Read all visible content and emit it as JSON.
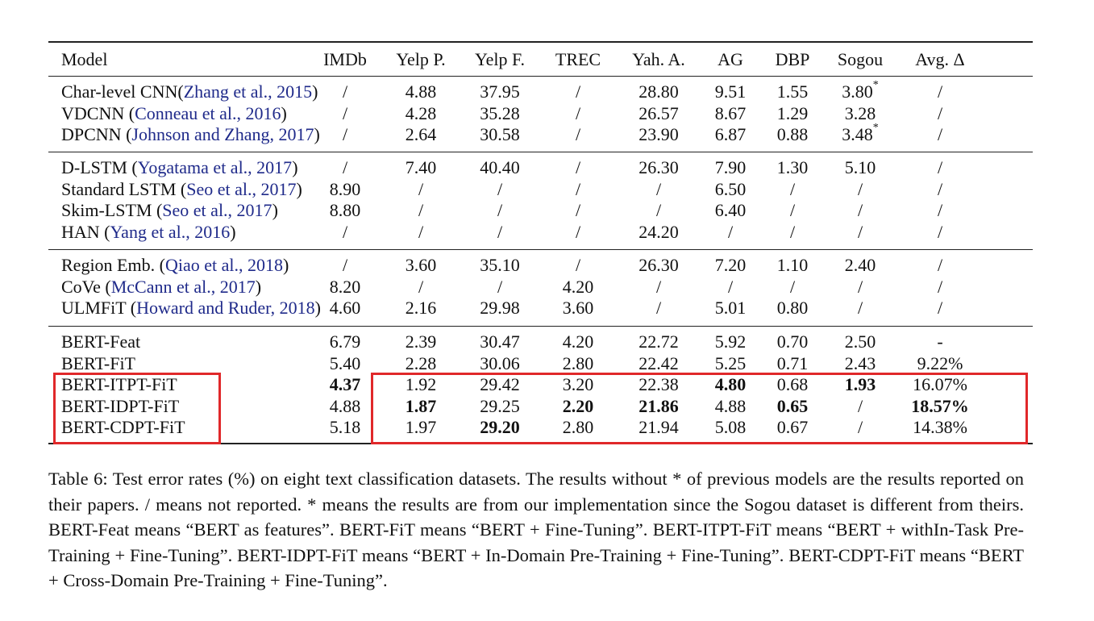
{
  "table": {
    "headers": [
      "Model",
      "IMDb",
      "Yelp P.",
      "Yelp F.",
      "TREC",
      "Yah. A.",
      "AG",
      "DBP",
      "Sogou",
      "Avg. Δ"
    ],
    "groups": [
      [
        {
          "name": "Char-level CNN(",
          "cite": "Zhang et al., 2015",
          "suffix": ")",
          "cells": [
            "/",
            "4.88",
            "37.95",
            "/",
            "28.80",
            "9.51",
            "1.55",
            "3.80*",
            "/"
          ]
        },
        {
          "name": "VDCNN (",
          "cite": "Conneau et al., 2016",
          "suffix": ")",
          "cells": [
            "/",
            "4.28",
            "35.28",
            "/",
            "26.57",
            "8.67",
            "1.29",
            "3.28",
            "/"
          ]
        },
        {
          "name": "DPCNN (",
          "cite": "Johnson and Zhang, 2017",
          "suffix": ")",
          "cells": [
            "/",
            "2.64",
            "30.58",
            "/",
            "23.90",
            "6.87",
            "0.88",
            "3.48*",
            "/"
          ]
        }
      ],
      [
        {
          "name": "D-LSTM (",
          "cite": "Yogatama et al., 2017",
          "suffix": ")",
          "cells": [
            "/",
            "7.40",
            "40.40",
            "/",
            "26.30",
            "7.90",
            "1.30",
            "5.10",
            "/"
          ]
        },
        {
          "name": "Standard LSTM (",
          "cite": "Seo et al., 2017",
          "suffix": ")",
          "cells": [
            "8.90",
            "/",
            "/",
            "/",
            "/",
            "6.50",
            "/",
            "/",
            "/"
          ]
        },
        {
          "name": "Skim-LSTM (",
          "cite": "Seo et al., 2017",
          "suffix": ")",
          "cells": [
            "8.80",
            "/",
            "/",
            "/",
            "/",
            "6.40",
            "/",
            "/",
            "/"
          ]
        },
        {
          "name": "HAN (",
          "cite": "Yang et al., 2016",
          "suffix": ")",
          "cells": [
            "/",
            "/",
            "/",
            "/",
            "24.20",
            "/",
            "/",
            "/",
            "/"
          ]
        }
      ],
      [
        {
          "name": "Region Emb. (",
          "cite": "Qiao et al., 2018",
          "suffix": ")",
          "cells": [
            "/",
            "3.60",
            "35.10",
            "/",
            "26.30",
            "7.20",
            "1.10",
            "2.40",
            "/"
          ]
        },
        {
          "name": "CoVe (",
          "cite": "McCann et al., 2017",
          "suffix": ")",
          "cells": [
            "8.20",
            "/",
            "/",
            "4.20",
            "/",
            "/",
            "/",
            "/",
            "/"
          ]
        },
        {
          "name": "ULMFiT (",
          "cite": "Howard and Ruder, 2018",
          "suffix": ")",
          "cells": [
            "4.60",
            "2.16",
            "29.98",
            "3.60",
            "/",
            "5.01",
            "0.80",
            "/",
            "/"
          ]
        }
      ],
      [
        {
          "name": "BERT-Feat",
          "cite": "",
          "suffix": "",
          "cells": [
            "6.79",
            "2.39",
            "30.47",
            "4.20",
            "22.72",
            "5.92",
            "0.70",
            "2.50",
            "-"
          ]
        },
        {
          "name": "BERT-FiT",
          "cite": "",
          "suffix": "",
          "cells": [
            "5.40",
            "2.28",
            "30.06",
            "2.80",
            "22.42",
            "5.25",
            "0.71",
            "2.43",
            "9.22%"
          ]
        },
        {
          "name": "BERT-ITPT-FiT",
          "cite": "",
          "suffix": "",
          "cells": [
            "4.37",
            "1.92",
            "29.42",
            "3.20",
            "22.38",
            "4.80",
            "0.68",
            "1.93",
            "16.07%"
          ],
          "bold": [
            0,
            5,
            7
          ]
        },
        {
          "name": "BERT-IDPT-FiT",
          "cite": "",
          "suffix": "",
          "cells": [
            "4.88",
            "1.87",
            "29.25",
            "2.20",
            "21.86",
            "4.88",
            "0.65",
            "/",
            "18.57%"
          ],
          "bold": [
            1,
            3,
            4,
            6,
            8
          ]
        },
        {
          "name": "BERT-CDPT-FiT",
          "cite": "",
          "suffix": "",
          "cells": [
            "5.18",
            "1.97",
            "29.20",
            "2.80",
            "21.94",
            "5.08",
            "0.67",
            "/",
            "14.38%"
          ],
          "bold": [
            2
          ]
        }
      ]
    ]
  },
  "caption": "Table 6: Test error rates (%) on eight text classification datasets. The results without * of previous models are the results reported on their papers. / means not reported. * means the results are from our implementation since the Sogou dataset is different from theirs. BERT-Feat means “BERT as features”. BERT-FiT means “BERT + Fine-Tuning”. BERT-ITPT-FiT means “BERT + withIn-Task Pre-Training + Fine-Tuning”. BERT-IDPT-FiT means “BERT + In-Domain Pre-Training + Fine-Tuning”. BERT-CDPT-FiT means “BERT + Cross-Domain Pre-Training + Fine-Tuning”.",
  "colors": {
    "highlight": "#e0282a",
    "citation": "#1f2a8a"
  }
}
